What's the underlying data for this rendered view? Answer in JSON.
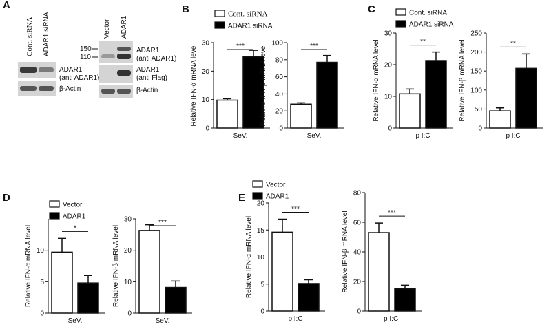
{
  "panel_labels": [
    "A",
    "B",
    "C",
    "D",
    "E"
  ],
  "blot": {
    "knockdown": {
      "lanes": [
        "Cont. siRNA",
        "ADAR1 siRNA"
      ],
      "rows": [
        [
          "ADAR1",
          "(anti ADAR1)"
        ],
        [
          "β-Actin"
        ]
      ]
    },
    "overexpression": {
      "lanes": [
        "Vector",
        "ADAR1"
      ],
      "markers": [
        "150",
        "110"
      ],
      "rows": [
        [
          "ADAR1",
          "(anti ADAR1)"
        ],
        [
          "ADAR1",
          "(anti Flag)"
        ],
        [
          "β-Actin"
        ]
      ]
    }
  },
  "chart_data": [
    {
      "type": "bar",
      "ylabel": "Relative IFN-α mRNA level",
      "categories": [
        "SeV."
      ],
      "series": [
        {
          "name": "Cont. siRNA",
          "color": "#ffffff",
          "values": [
            9.8
          ],
          "errors": [
            0.5
          ]
        },
        {
          "name": "ADAR1 siRNA",
          "color": "#000000",
          "values": [
            25
          ],
          "errors": [
            2.3
          ]
        }
      ],
      "ylim": [
        0,
        30
      ],
      "yticks": [
        0,
        10,
        20,
        30
      ],
      "significance": "***"
    },
    {
      "type": "bar",
      "ylabel": "Relative IFN-β mRNA level",
      "categories": [
        "SeV."
      ],
      "series": [
        {
          "color": "#ffffff",
          "values": [
            28
          ],
          "errors": [
            1.5
          ]
        },
        {
          "color": "#000000",
          "values": [
            77
          ],
          "errors": [
            8
          ]
        }
      ],
      "ylim": [
        0,
        100
      ],
      "yticks": [
        0,
        20,
        40,
        60,
        80,
        100
      ],
      "significance": "***"
    },
    {
      "type": "bar",
      "ylabel": "Relative IFN-α mRNA level",
      "categories": [
        "p I:C"
      ],
      "series": [
        {
          "name": "Cont. siRNA",
          "color": "#ffffff",
          "values": [
            10.8
          ],
          "errors": [
            1.5
          ]
        },
        {
          "name": "ADAR1 siRNA",
          "color": "#000000",
          "values": [
            21.3
          ],
          "errors": [
            2.7
          ]
        }
      ],
      "ylim": [
        0,
        30
      ],
      "yticks": [
        0,
        10,
        20,
        30
      ],
      "significance": "**"
    },
    {
      "type": "bar",
      "ylabel": "Relative IFN-β mRNA level",
      "categories": [
        "p I:C"
      ],
      "series": [
        {
          "color": "#ffffff",
          "values": [
            45
          ],
          "errors": [
            8
          ]
        },
        {
          "color": "#000000",
          "values": [
            157
          ],
          "errors": [
            38
          ]
        }
      ],
      "ylim": [
        0,
        250
      ],
      "yticks": [
        0,
        50,
        100,
        150,
        200,
        250
      ],
      "significance": "**"
    },
    {
      "type": "bar",
      "ylabel": "Relative IFN-α mRNA level",
      "categories": [
        "SeV."
      ],
      "series": [
        {
          "name": "Vector",
          "color": "#ffffff",
          "values": [
            9.7
          ],
          "errors": [
            2.2
          ]
        },
        {
          "name": "ADAR1",
          "color": "#000000",
          "values": [
            4.8
          ],
          "errors": [
            1.2
          ]
        }
      ],
      "ylim": [
        0,
        15
      ],
      "yticks": [
        0,
        5,
        10
      ],
      "significance": "*"
    },
    {
      "type": "bar",
      "ylabel": "Relative IFN-β mRNA level",
      "categories": [
        "SeV."
      ],
      "series": [
        {
          "color": "#ffffff",
          "values": [
            26.3
          ],
          "errors": [
            1.8
          ]
        },
        {
          "color": "#000000",
          "values": [
            8.2
          ],
          "errors": [
            2
          ]
        }
      ],
      "ylim": [
        0,
        30
      ],
      "yticks": [
        0,
        10,
        20,
        30
      ],
      "significance": "***"
    },
    {
      "type": "bar",
      "ylabel": "Relative IFN-α mRNA level",
      "categories": [
        "p I:C"
      ],
      "series": [
        {
          "name": "Vector",
          "color": "#ffffff",
          "values": [
            14.6
          ],
          "errors": [
            2.4
          ]
        },
        {
          "name": "ADAR1",
          "color": "#000000",
          "values": [
            5.1
          ],
          "errors": [
            0.7
          ]
        }
      ],
      "ylim": [
        0,
        20
      ],
      "yticks": [
        0,
        5,
        10,
        15,
        20
      ],
      "significance": "***"
    },
    {
      "type": "bar",
      "ylabel": "Relative IFN-β mRNA level",
      "categories": [
        "p I:C."
      ],
      "series": [
        {
          "color": "#ffffff",
          "values": [
            53
          ],
          "errors": [
            6.5
          ]
        },
        {
          "color": "#000000",
          "values": [
            15
          ],
          "errors": [
            2.5
          ]
        }
      ],
      "ylim": [
        0,
        80
      ],
      "yticks": [
        0,
        20,
        40,
        60,
        80
      ],
      "significance": "***"
    }
  ]
}
